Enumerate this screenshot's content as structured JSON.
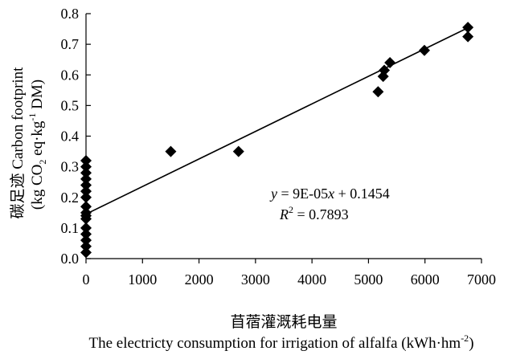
{
  "chart_data": {
    "type": "scatter",
    "xlim": [
      0,
      7000
    ],
    "ylim": [
      0,
      0.8
    ],
    "xticks": [
      0,
      1000,
      2000,
      3000,
      4000,
      5000,
      6000,
      7000
    ],
    "xtick_labels": [
      "0",
      "1000",
      "2000",
      "3000",
      "4000",
      "5000",
      "6000",
      "7000"
    ],
    "yticks": [
      0,
      0.1,
      0.2,
      0.3,
      0.4,
      0.5,
      0.6,
      0.7,
      0.8
    ],
    "ytick_labels": [
      "0.0",
      "0.1",
      "0.2",
      "0.3",
      "0.4",
      "0.5",
      "0.6",
      "0.7",
      "0.8"
    ],
    "ylabel_line1": "碳足迹 Carbon footprint",
    "ylabel_line2_parts": [
      "(kg CO",
      "2",
      " eq·kg",
      "-1",
      " DM)"
    ],
    "xlabel_line1": "苜蓿灌溉耗电量",
    "xlabel_line2_parts": [
      "The electricty consumption for irrigation of alfalfa (kWh·hm",
      "-2",
      ")"
    ],
    "grid": false,
    "marker": "diamond",
    "points": [
      {
        "x": 0,
        "y": 0.02
      },
      {
        "x": 0,
        "y": 0.04
      },
      {
        "x": 0,
        "y": 0.06
      },
      {
        "x": 0,
        "y": 0.08
      },
      {
        "x": 0,
        "y": 0.1
      },
      {
        "x": 0,
        "y": 0.13
      },
      {
        "x": 0,
        "y": 0.14
      },
      {
        "x": 0,
        "y": 0.15
      },
      {
        "x": 0,
        "y": 0.17
      },
      {
        "x": 0,
        "y": 0.2
      },
      {
        "x": 0,
        "y": 0.22
      },
      {
        "x": 0,
        "y": 0.24
      },
      {
        "x": 0,
        "y": 0.26
      },
      {
        "x": 0,
        "y": 0.28
      },
      {
        "x": 0,
        "y": 0.3
      },
      {
        "x": 0,
        "y": 0.32
      },
      {
        "x": 1500,
        "y": 0.35
      },
      {
        "x": 2700,
        "y": 0.35
      },
      {
        "x": 5170,
        "y": 0.545
      },
      {
        "x": 5260,
        "y": 0.595
      },
      {
        "x": 5280,
        "y": 0.615
      },
      {
        "x": 5380,
        "y": 0.64
      },
      {
        "x": 5990,
        "y": 0.68
      },
      {
        "x": 6760,
        "y": 0.725
      },
      {
        "x": 6760,
        "y": 0.755
      }
    ],
    "trendline": {
      "x_start": 0,
      "x_end": 6760,
      "slope": 9e-05,
      "intercept": 0.1454
    },
    "equation_parts": [
      "y",
      " = 9E-05",
      "x",
      " + 0.1454"
    ],
    "r2_parts": [
      "R",
      "2",
      " = 0.7893"
    ]
  }
}
